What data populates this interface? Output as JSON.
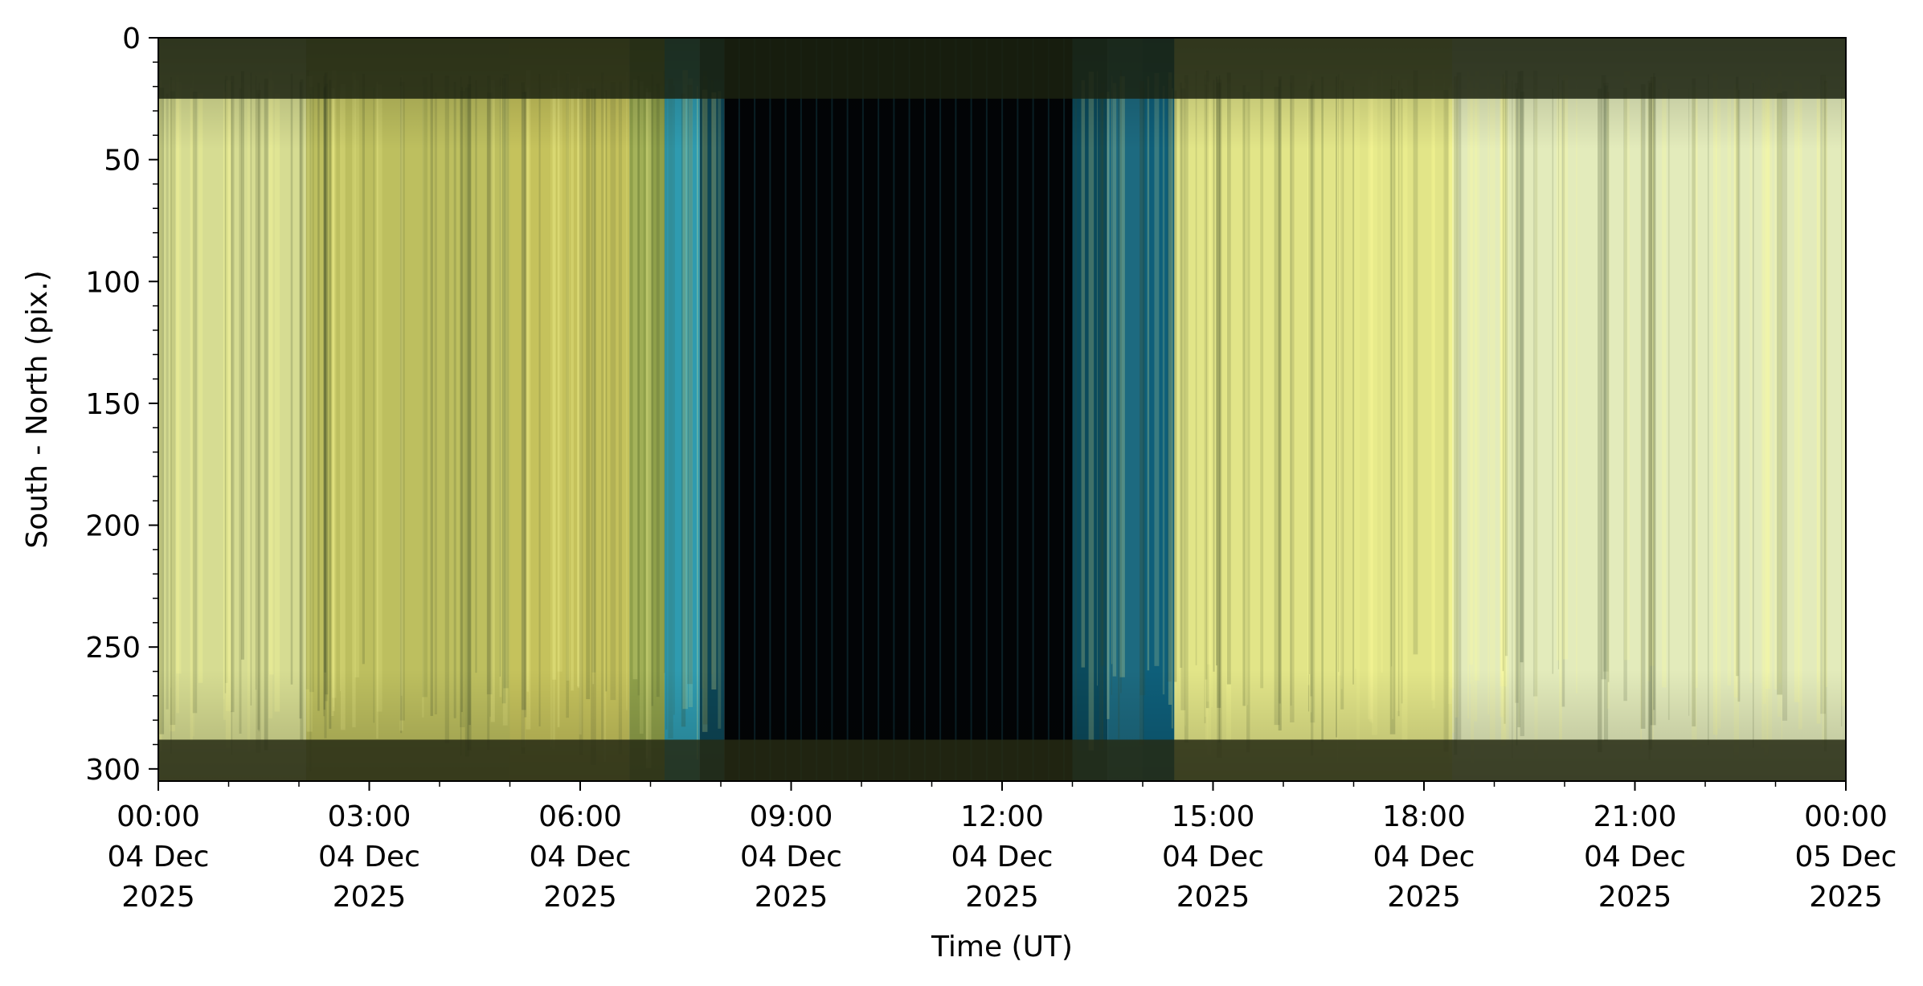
{
  "chart_data": {
    "type": "heatmap",
    "title": "",
    "xlabel": "Time (UT)",
    "ylabel": "South - North (pix.)",
    "x_range": [
      "2025-12-04 00:00",
      "2025-12-05 00:00"
    ],
    "x_ticks": [
      {
        "hour": 0,
        "label": [
          "00:00",
          "04 Dec",
          "2025"
        ]
      },
      {
        "hour": 3,
        "label": [
          "03:00",
          "04 Dec",
          "2025"
        ]
      },
      {
        "hour": 6,
        "label": [
          "06:00",
          "04 Dec",
          "2025"
        ]
      },
      {
        "hour": 9,
        "label": [
          "09:00",
          "04 Dec",
          "2025"
        ]
      },
      {
        "hour": 12,
        "label": [
          "12:00",
          "04 Dec",
          "2025"
        ]
      },
      {
        "hour": 15,
        "label": [
          "15:00",
          "04 Dec",
          "2025"
        ]
      },
      {
        "hour": 18,
        "label": [
          "18:00",
          "04 Dec",
          "2025"
        ]
      },
      {
        "hour": 21,
        "label": [
          "21:00",
          "04 Dec",
          "2025"
        ]
      },
      {
        "hour": 24,
        "label": [
          "00:00",
          "05 Dec",
          "2025"
        ]
      }
    ],
    "ylim": [
      305,
      0
    ],
    "y_ticks": [
      0,
      50,
      100,
      150,
      200,
      250,
      300
    ],
    "y_inverted": true,
    "grid": false,
    "bands": [
      {
        "start_h": 0.0,
        "end_h": 2.1,
        "color": "#d6dc92",
        "kind": "daylight"
      },
      {
        "start_h": 2.1,
        "end_h": 5.0,
        "color": "#bdbf5f",
        "kind": "daylight"
      },
      {
        "start_h": 5.0,
        "end_h": 6.7,
        "color": "#c5c25c",
        "kind": "daylight"
      },
      {
        "start_h": 6.7,
        "end_h": 7.2,
        "color": "#8fa04a",
        "kind": "twilight"
      },
      {
        "start_h": 7.2,
        "end_h": 7.7,
        "color": "#2f9bb0",
        "kind": "twilight"
      },
      {
        "start_h": 7.7,
        "end_h": 8.05,
        "color": "#0d4656",
        "kind": "twilight"
      },
      {
        "start_h": 8.05,
        "end_h": 13.0,
        "color": "#020406",
        "kind": "night"
      },
      {
        "start_h": 13.0,
        "end_h": 13.5,
        "color": "#0b4a5c",
        "kind": "twilight"
      },
      {
        "start_h": 13.5,
        "end_h": 14.0,
        "color": "#1d6a80",
        "kind": "twilight"
      },
      {
        "start_h": 14.0,
        "end_h": 14.45,
        "color": "#0e5f7a",
        "kind": "twilight"
      },
      {
        "start_h": 14.45,
        "end_h": 18.4,
        "color": "#e2e588",
        "kind": "daylight"
      },
      {
        "start_h": 18.4,
        "end_h": 24.0,
        "color": "#e3ebbb",
        "kind": "daylight"
      }
    ],
    "horizontal_features": [
      {
        "y0": 0,
        "y1": 25,
        "color": "#1b2210"
      },
      {
        "y0": 288,
        "y1": 305,
        "color": "#262a14"
      }
    ],
    "colors": {
      "background": "#ffffff",
      "axis": "#000000",
      "night": "#020406",
      "daylight": "#e3e58c",
      "twilight": "#2a9fb5"
    }
  }
}
